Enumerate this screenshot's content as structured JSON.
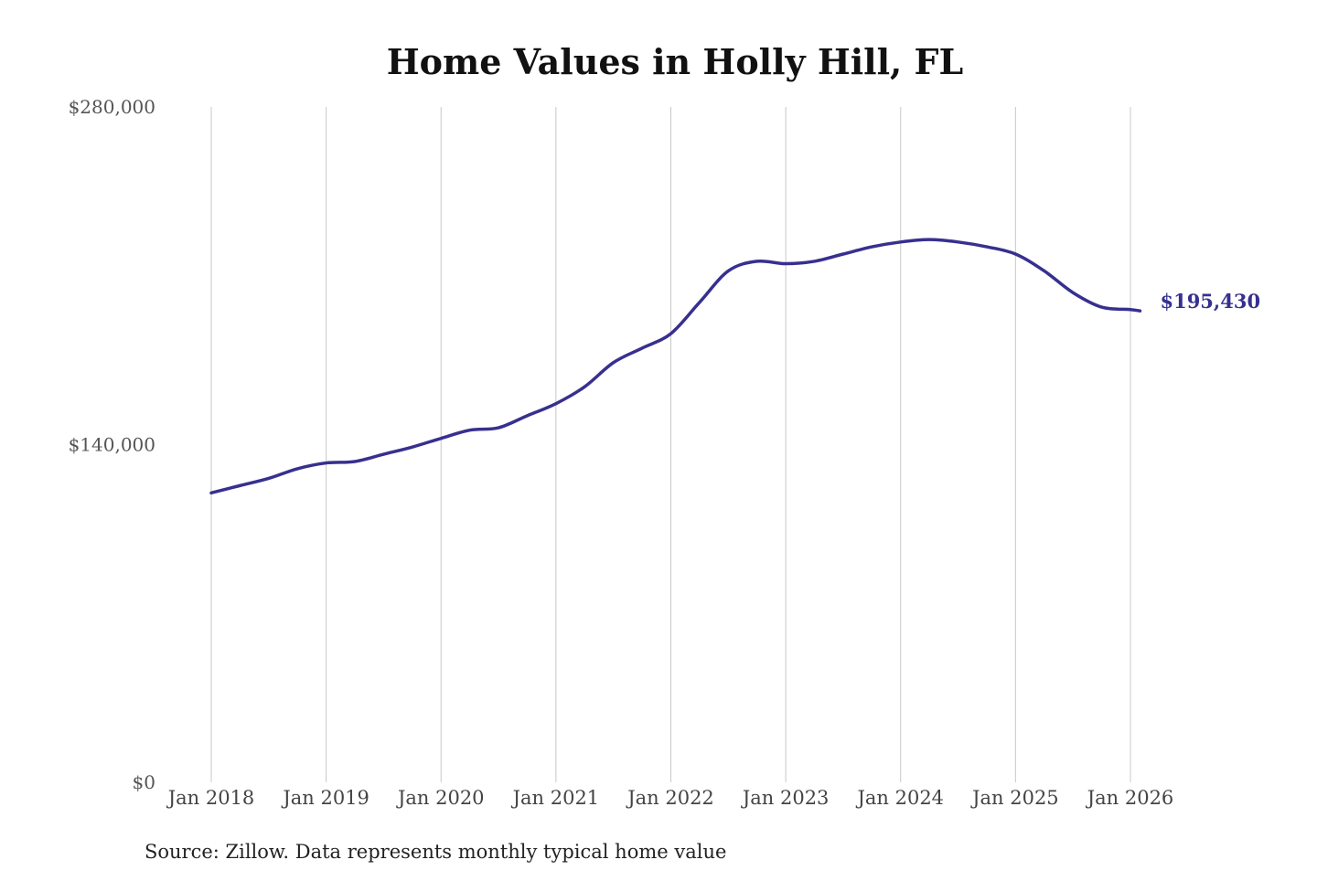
{
  "chart_data": {
    "type": "line",
    "title": "Home Values in Holly Hill, FL",
    "source": "Source: Zillow. Data represents monthly typical home value",
    "xlabel": "",
    "ylabel": "",
    "ylim": [
      0,
      280000
    ],
    "y_ticks": [
      0,
      140000,
      280000
    ],
    "y_tick_labels": [
      "$0",
      "$140,000",
      "$280,000"
    ],
    "x_ticks": [
      "2018-01",
      "2019-01",
      "2020-01",
      "2021-01",
      "2022-01",
      "2023-01",
      "2024-01",
      "2025-01",
      "2026-01"
    ],
    "x_tick_labels": [
      "Jan 2018",
      "Jan 2019",
      "Jan 2020",
      "Jan 2021",
      "Jan 2022",
      "Jan 2023",
      "Jan 2024",
      "Jan 2025",
      "Jan 2026"
    ],
    "grid": "vertical",
    "line_color": "#37308f",
    "end_label": "$195,430",
    "series": [
      {
        "x": [
          "2018-01",
          "2018-04",
          "2018-07",
          "2018-10",
          "2019-01",
          "2019-04",
          "2019-07",
          "2019-10",
          "2020-01",
          "2020-04",
          "2020-07",
          "2020-10",
          "2021-01",
          "2021-04",
          "2021-07",
          "2021-10",
          "2022-01",
          "2022-04",
          "2022-07",
          "2022-10",
          "2023-01",
          "2023-04",
          "2023-07",
          "2023-10",
          "2024-01",
          "2024-04",
          "2024-07",
          "2024-10",
          "2025-01",
          "2025-04",
          "2025-07",
          "2025-10",
          "2026-01",
          "2026-02"
        ],
        "values": [
          120000,
          123000,
          126000,
          130000,
          132400,
          133000,
          136000,
          139000,
          142600,
          146000,
          147000,
          152000,
          157000,
          164000,
          174000,
          180000,
          186000,
          199000,
          212000,
          216000,
          215000,
          216000,
          219000,
          222000,
          224000,
          225000,
          224000,
          222000,
          219000,
          212000,
          203000,
          197000,
          196000,
          195430
        ]
      }
    ]
  }
}
